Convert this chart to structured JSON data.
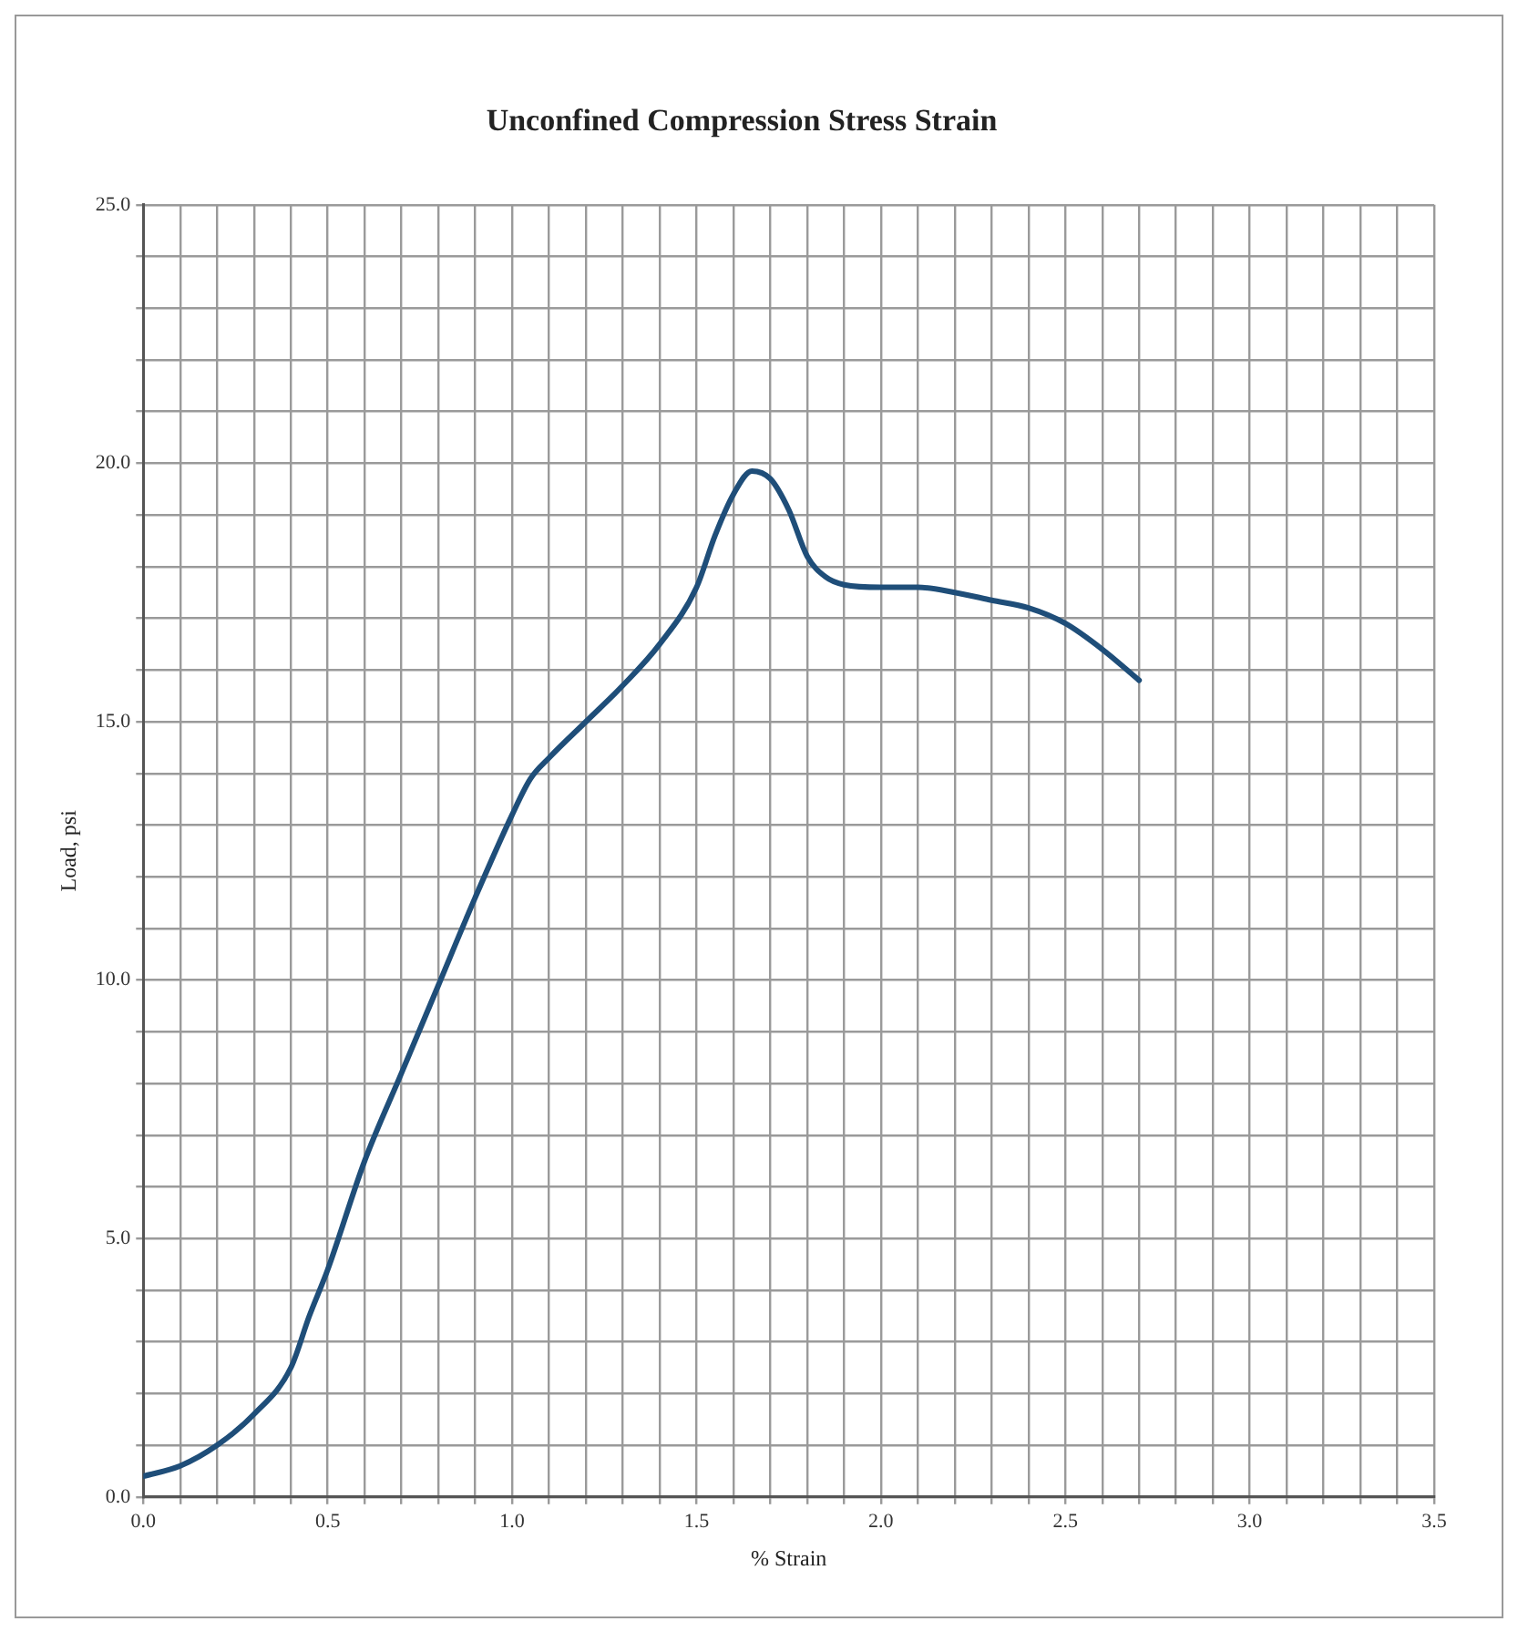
{
  "chart_data": {
    "type": "line",
    "title": "Unconfined Compression Stress Strain",
    "xlabel": "% Strain",
    "ylabel": "Load, psi",
    "x": [
      0,
      0.1,
      0.2,
      0.3,
      0.4,
      0.45,
      0.5,
      0.6,
      0.7,
      0.8,
      0.9,
      1.0,
      1.05,
      1.1,
      1.2,
      1.3,
      1.4,
      1.5,
      1.55,
      1.6,
      1.65,
      1.7,
      1.75,
      1.8,
      1.85,
      1.9,
      2.0,
      2.1,
      2.2,
      2.3,
      2.4,
      2.5,
      2.6,
      2.7
    ],
    "series": [
      {
        "color": "#1f4e79",
        "values": [
          0.4,
          0.6,
          1.0,
          1.6,
          2.5,
          3.5,
          4.4,
          6.5,
          8.2,
          9.9,
          11.6,
          13.2,
          13.9,
          14.3,
          15.0,
          15.7,
          16.5,
          17.6,
          18.6,
          19.4,
          19.85,
          19.7,
          19.1,
          18.2,
          17.8,
          17.65,
          17.6,
          17.6,
          17.5,
          17.35,
          17.2,
          16.9,
          16.4,
          15.8
        ]
      }
    ],
    "xlim": [
      0,
      3.5
    ],
    "xticks": [
      {
        "value": 0,
        "label": "0.0"
      },
      {
        "value": 0.1,
        "label": null
      },
      {
        "value": 0.2,
        "label": null
      },
      {
        "value": 0.3,
        "label": null
      },
      {
        "value": 0.4,
        "label": null
      },
      {
        "value": 0.5,
        "label": "0.5"
      },
      {
        "value": 0.6,
        "label": null
      },
      {
        "value": 0.7,
        "label": null
      },
      {
        "value": 0.8,
        "label": null
      },
      {
        "value": 0.9,
        "label": null
      },
      {
        "value": 1,
        "label": "1.0"
      },
      {
        "value": 1.1,
        "label": null
      },
      {
        "value": 1.2,
        "label": null
      },
      {
        "value": 1.3,
        "label": null
      },
      {
        "value": 1.4,
        "label": null
      },
      {
        "value": 1.5,
        "label": "1.5"
      },
      {
        "value": 1.6,
        "label": null
      },
      {
        "value": 1.7,
        "label": null
      },
      {
        "value": 1.8,
        "label": null
      },
      {
        "value": 1.9,
        "label": null
      },
      {
        "value": 2,
        "label": "2.0"
      },
      {
        "value": 2.1,
        "label": null
      },
      {
        "value": 2.2,
        "label": null
      },
      {
        "value": 2.3,
        "label": null
      },
      {
        "value": 2.4,
        "label": null
      },
      {
        "value": 2.5,
        "label": "2.5"
      },
      {
        "value": 2.6,
        "label": null
      },
      {
        "value": 2.7,
        "label": null
      },
      {
        "value": 2.8,
        "label": null
      },
      {
        "value": 2.9,
        "label": null
      },
      {
        "value": 3,
        "label": "3.0"
      },
      {
        "value": 3.1,
        "label": null
      },
      {
        "value": 3.2,
        "label": null
      },
      {
        "value": 3.3,
        "label": null
      },
      {
        "value": 3.4,
        "label": null
      },
      {
        "value": 3.5,
        "label": "3.5"
      }
    ],
    "ylim": [
      0,
      25
    ],
    "yticks": [
      {
        "value": 0,
        "label": "0.0"
      },
      {
        "value": 1,
        "label": null
      },
      {
        "value": 2,
        "label": null
      },
      {
        "value": 3,
        "label": null
      },
      {
        "value": 4,
        "label": null
      },
      {
        "value": 5,
        "label": "5.0"
      },
      {
        "value": 6,
        "label": null
      },
      {
        "value": 7,
        "label": null
      },
      {
        "value": 8,
        "label": null
      },
      {
        "value": 9,
        "label": null
      },
      {
        "value": 10,
        "label": "10.0"
      },
      {
        "value": 11,
        "label": null
      },
      {
        "value": 12,
        "label": null
      },
      {
        "value": 13,
        "label": null
      },
      {
        "value": 14,
        "label": null
      },
      {
        "value": 15,
        "label": "15.0"
      },
      {
        "value": 16,
        "label": null
      },
      {
        "value": 17,
        "label": null
      },
      {
        "value": 18,
        "label": null
      },
      {
        "value": 19,
        "label": null
      },
      {
        "value": 20,
        "label": "20.0"
      },
      {
        "value": 21,
        "label": null
      },
      {
        "value": 22,
        "label": null
      },
      {
        "value": 23,
        "label": null
      },
      {
        "value": 24,
        "label": null
      },
      {
        "value": 25,
        "label": "25.0"
      }
    ],
    "grid": true,
    "marker": "none",
    "line_style": "solid"
  }
}
